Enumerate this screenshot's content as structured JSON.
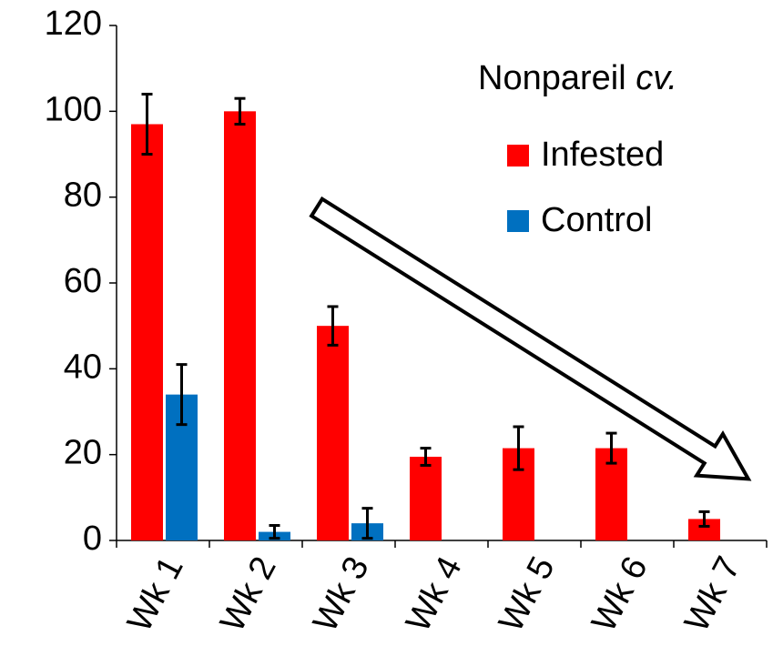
{
  "chart_data": {
    "type": "bar",
    "legend_title": "Nonpareil",
    "legend_title_italic": "cv.",
    "categories": [
      "Wk 1",
      "Wk 2",
      "Wk 3",
      "Wk 4",
      "Wk 5",
      "Wk 6",
      "Wk 7"
    ],
    "series": [
      {
        "name": "Infested",
        "color": "#ff0000",
        "values": [
          97,
          100,
          50,
          19.5,
          21.5,
          21.5,
          5
        ],
        "errors": [
          7,
          3,
          4.5,
          2,
          5,
          3.5,
          1.7
        ]
      },
      {
        "name": "Control",
        "color": "#0070c0",
        "values": [
          34,
          2,
          4,
          null,
          null,
          null,
          null
        ],
        "errors": [
          7,
          1.5,
          3.5,
          null,
          null,
          null,
          null
        ]
      }
    ],
    "ylim": [
      0,
      120
    ],
    "yticks": [
      0,
      20,
      40,
      60,
      80,
      100,
      120
    ],
    "grid": false,
    "legend": "upper right"
  }
}
